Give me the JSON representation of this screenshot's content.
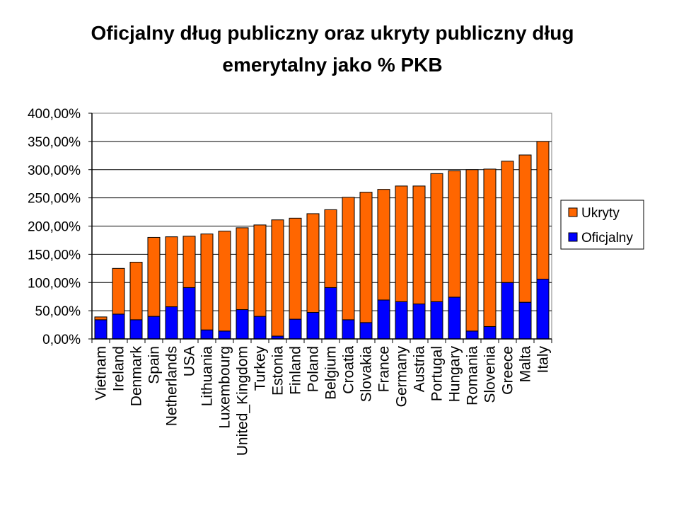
{
  "chart_data": {
    "type": "bar",
    "stacked": true,
    "title": [
      "Oficjalny dług publiczny oraz ukryty publiczny dług",
      "emerytalny jako % PKB"
    ],
    "xlabel": "",
    "ylabel": "",
    "ylim": [
      0,
      400
    ],
    "yticks": [
      "0,00%",
      "50,00%",
      "100,00%",
      "150,00%",
      "200,00%",
      "250,00%",
      "300,00%",
      "350,00%",
      "400,00%"
    ],
    "grid": true,
    "legend_position": "right",
    "categories": [
      "Vietnam",
      "Ireland",
      "Denmark",
      "Spain",
      "Netherlands",
      "USA",
      "Lithuania",
      "Luxembourg",
      "United_Kingdom",
      "Turkey",
      "Estonia",
      "Finland",
      "Poland",
      "Belgium",
      "Croatia",
      "Slovakia",
      "France",
      "Germany",
      "Austria",
      "Portugal",
      "Hungary",
      "Romania",
      "Slovenia",
      "Greece",
      "Malta",
      "Italy"
    ],
    "series": [
      {
        "name": "Oficjalny",
        "color": "#0000FF",
        "values": [
          34,
          44,
          34,
          40,
          57,
          91,
          16,
          14,
          52,
          40,
          5,
          35,
          47,
          91,
          34,
          29,
          69,
          66,
          62,
          66,
          74,
          14,
          22,
          100,
          65,
          106
        ]
      },
      {
        "name": "Ukryty",
        "color": "#FF6600",
        "values": [
          5,
          81,
          102,
          140,
          124,
          91,
          170,
          177,
          145,
          162,
          206,
          179,
          175,
          138,
          217,
          231,
          196,
          205,
          209,
          227,
          224,
          286,
          279,
          215,
          261,
          244
        ]
      }
    ]
  }
}
